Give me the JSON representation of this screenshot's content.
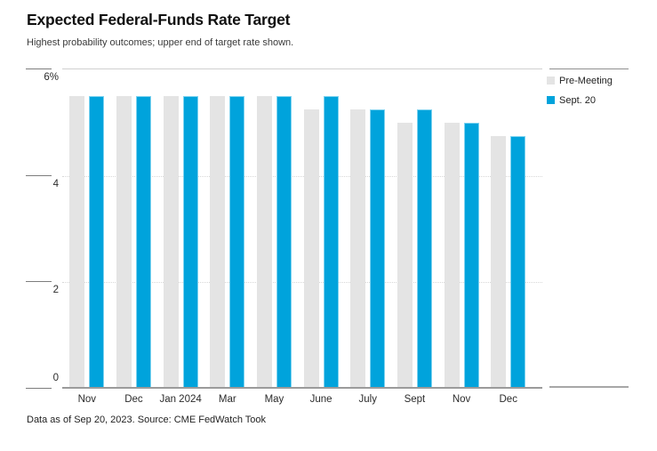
{
  "header": {
    "title": "Expected Federal-Funds Rate Target",
    "subtitle": "Highest probability outcomes; upper end of target rate shown."
  },
  "footer": {
    "source": "Data as of Sep 20, 2023. Source: CME FedWatch Took"
  },
  "legend": {
    "items": [
      {
        "label": "Pre-Meeting",
        "color": "#e4e4e4"
      },
      {
        "label": "Sept. 20",
        "color": "#00a3dc"
      }
    ]
  },
  "colors": {
    "pre_meeting": "#e4e4e4",
    "sept_20": "#00a3dc",
    "sept_20_border": "#7ed3f0",
    "axis_line": "#9b9b9b",
    "tick_line": "#7d7d7d",
    "gridline": "#d8d8d8"
  },
  "chart_data": {
    "type": "bar",
    "title": "Expected Federal-Funds Rate Target",
    "subtitle": "Highest probability outcomes; upper end of target rate shown.",
    "categories": [
      "Nov",
      "Dec",
      "Jan 2024",
      "Mar",
      "May",
      "June",
      "July",
      "Sept",
      "Nov",
      "Dec"
    ],
    "series": [
      {
        "name": "Pre-Meeting",
        "color": "#e4e4e4",
        "values": [
          5.5,
          5.5,
          5.5,
          5.5,
          5.5,
          5.25,
          5.25,
          5.0,
          5.0,
          4.75
        ]
      },
      {
        "name": "Sept. 20",
        "color": "#00a3dc",
        "values": [
          5.5,
          5.5,
          5.5,
          5.5,
          5.5,
          5.5,
          5.25,
          5.25,
          5.0,
          4.75
        ]
      }
    ],
    "xlabel": "",
    "ylabel": "",
    "ylim": [
      0,
      6
    ],
    "yticks": [
      {
        "value": 6,
        "label": "6%"
      },
      {
        "value": 4,
        "label": "4"
      },
      {
        "value": 2,
        "label": "2"
      },
      {
        "value": 0,
        "label": "0"
      }
    ],
    "grid": "horizontal dotted at interior ticks",
    "legend_position": "top-right",
    "unit": "percent"
  }
}
